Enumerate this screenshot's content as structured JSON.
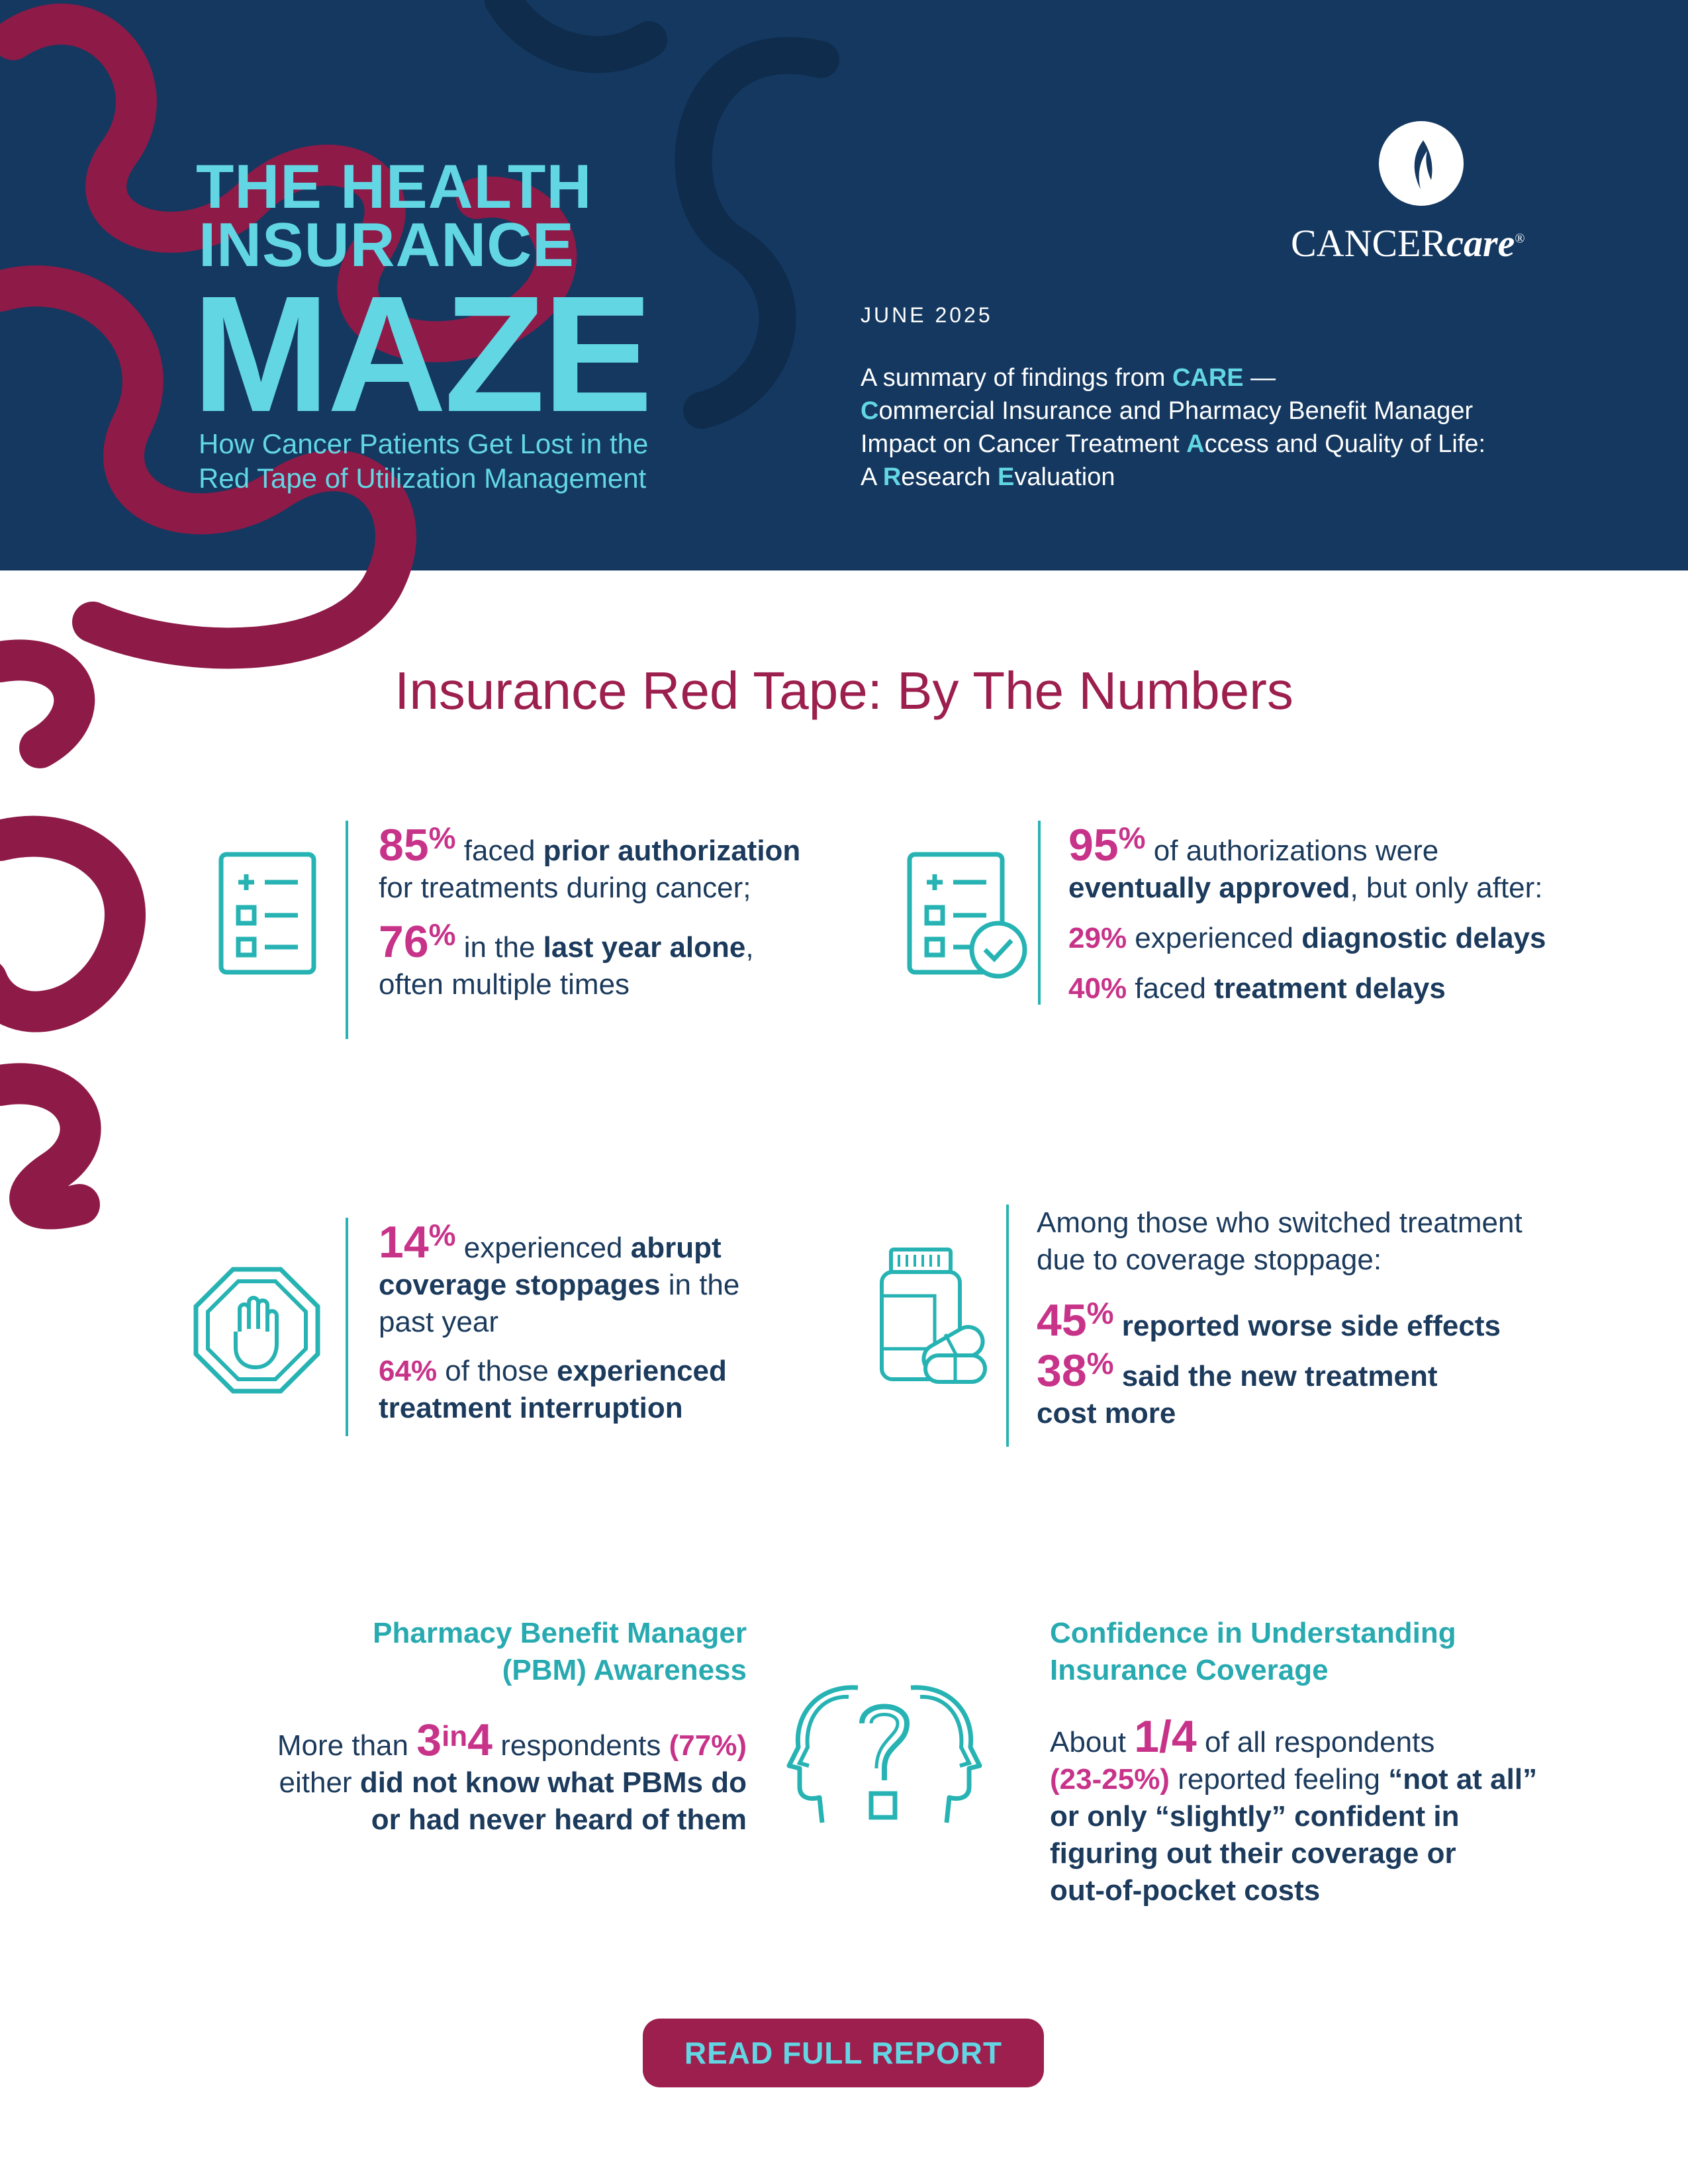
{
  "header": {
    "title_line1": "THE HEALTH",
    "title_line2": "INSURANCE",
    "title_maze": "MAZE",
    "subtitle_line1": "How Cancer Patients Get Lost in the",
    "subtitle_line2": "Red Tape of Utilization Management",
    "logo_text_caps": "CANCER",
    "logo_text_script": "care",
    "logo_reg": "®",
    "date": "JUNE 2025",
    "summary": {
      "intro": "A summary of findings from ",
      "care": "CARE",
      "dash": " —",
      "l2_c": "C",
      "l2_rest": "ommercial Insurance and Pharmacy Benefit Manager",
      "l3_a": "Impact on Cancer Treatment ",
      "l3_A": "A",
      "l3_b": "ccess and Quality of Life:",
      "l4_a": "A ",
      "l4_R": "R",
      "l4_b": "esearch ",
      "l4_E": "E",
      "l4_c": "valuation"
    }
  },
  "section_title": "Insurance Red Tape: By The Numbers",
  "stat1": {
    "n1": "85",
    "pct": "%",
    "t1": " faced ",
    "t1b": "prior authorization",
    "t2": "for treatments during cancer;",
    "n2": "76",
    "t3": " in the ",
    "t3b": "last year alone",
    "t3c": ",",
    "t4": "often multiple times"
  },
  "stat2": {
    "n1": "95",
    "pct": "%",
    "t1": " of authorizations were",
    "t2b": "eventually approved",
    "t2": ", but only after:",
    "p1": "29%",
    "t3": " experienced ",
    "t3b": "diagnostic delays",
    "p2": "40%",
    "t4": " faced ",
    "t4b": "treatment delays"
  },
  "stat3": {
    "n1": "14",
    "pct": "%",
    "t1": " experienced ",
    "t1b": "abrupt",
    "t2b": "coverage stoppages",
    "t2": " in the",
    "t3": "past year",
    "p1": "64%",
    "t4": " of those ",
    "t4b": "experienced",
    "t5b": "treatment interruption"
  },
  "stat4": {
    "t1": "Among those who switched treatment",
    "t2": "due to coverage stoppage:",
    "n1": "45",
    "pct": "%",
    "t3b": " reported worse side effects",
    "n2": "38",
    "t4b": " said the new treatment",
    "t5b": "cost more"
  },
  "pbm": {
    "heading1": "Pharmacy Benefit Manager",
    "heading2": "(PBM) Awareness",
    "a": "More than ",
    "n1": "3",
    "in": "in",
    "n2": "4",
    "b": " respondents ",
    "p": "(77%)",
    "c": "either ",
    "cb": "did not know what PBMs do",
    "db": "or had never heard of them"
  },
  "confidence": {
    "heading1": "Confidence in Understanding",
    "heading2": "Insurance Coverage",
    "a": "About ",
    "n1": "1/4",
    "b": " of all respondents",
    "p": "(23-25%)",
    "c": " reported feeling ",
    "cb": "“not at all”",
    "db": "or only “slightly” confident in",
    "eb": "figuring out their coverage or",
    "fb": "out-of-pocket costs"
  },
  "cta": {
    "label": "READ FULL REPORT"
  },
  "colors": {
    "navy": "#143860",
    "teal": "#27b3b3",
    "cyan": "#63d6e4",
    "magenta": "#c8338a",
    "maroon": "#9c1f4d"
  }
}
